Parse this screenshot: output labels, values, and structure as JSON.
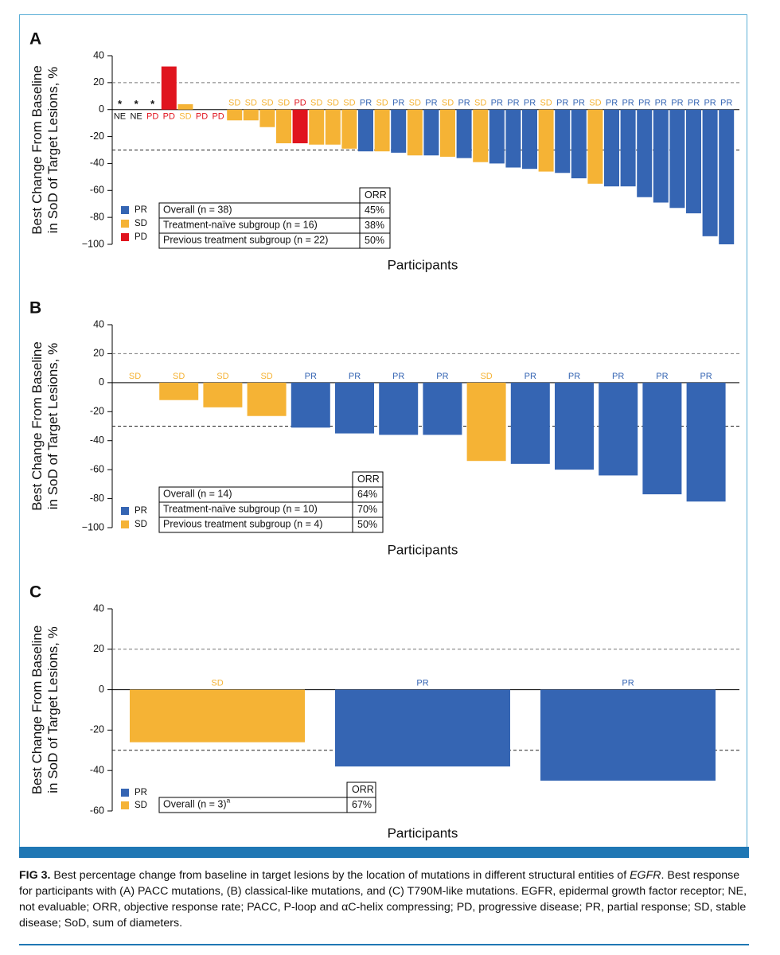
{
  "colors": {
    "PR": "#3565b3",
    "SD": "#f5b335",
    "PD": "#e0141e",
    "NE": "#111111",
    "frame": "#5aaed6",
    "band": "#1f77b4"
  },
  "chart_data": [
    {
      "type": "bar",
      "panel": "A",
      "ylabel_line1": "Best Change From Baseline",
      "ylabel_line2": "in SoD of Target Lesions, %",
      "xlabel": "Participants",
      "ylim": [
        -100,
        40
      ],
      "yticks": [
        40,
        20,
        0,
        -20,
        -40,
        -60,
        -80,
        -100
      ],
      "ytick_labels": [
        "40",
        "20",
        "0",
        "-20",
        "-40",
        "-60",
        "-80",
        "−100"
      ],
      "reference_lines": [
        20,
        -30
      ],
      "responses": [
        "NE",
        "NE",
        "PD",
        "PD",
        "SD",
        "PD",
        "PD",
        "SD",
        "SD",
        "SD",
        "SD",
        "PD",
        "SD",
        "SD",
        "SD",
        "PR",
        "SD",
        "PR",
        "SD",
        "PR",
        "SD",
        "PR",
        "SD",
        "PR",
        "PR",
        "PR",
        "SD",
        "PR",
        "PR",
        "SD",
        "PR",
        "PR",
        "PR",
        "PR",
        "PR",
        "PR",
        "PR",
        "PR"
      ],
      "values": [
        0,
        0,
        0,
        32,
        4,
        0,
        0,
        -8,
        -8,
        -13,
        -25,
        -25,
        -26,
        -26,
        -29,
        -31,
        -31,
        -32,
        -34,
        -34,
        -35,
        -36,
        -39,
        -40,
        -43,
        -44,
        -46,
        -47,
        -51,
        -55,
        -57,
        -57,
        -65,
        -69,
        -73,
        -77,
        -94,
        -100
      ],
      "not_evaluable_mark": "*",
      "not_evaluable_columns": [
        0,
        1,
        2
      ],
      "legend": [
        "PR",
        "SD",
        "PD"
      ],
      "orr_table": {
        "header": "ORR",
        "rows": [
          {
            "label": "Overall (n = 38)",
            "value": "45%"
          },
          {
            "label": "Treatment-naïve subgroup (n = 16)",
            "value": "38%"
          },
          {
            "label": "Previous treatment subgroup (n = 22)",
            "value": "50%"
          }
        ]
      }
    },
    {
      "type": "bar",
      "panel": "B",
      "ylabel_line1": "Best Change From Baseline",
      "ylabel_line2": "in SoD of Target Lesions, %",
      "xlabel": "Participants",
      "ylim": [
        -100,
        40
      ],
      "yticks": [
        40,
        20,
        0,
        -20,
        -40,
        -60,
        -80,
        -100
      ],
      "ytick_labels": [
        "40",
        "20",
        "0",
        "-20",
        "-40",
        "-60",
        "-80",
        "−100"
      ],
      "reference_lines": [
        20,
        -30
      ],
      "responses": [
        "SD",
        "SD",
        "SD",
        "SD",
        "PR",
        "PR",
        "PR",
        "PR",
        "SD",
        "PR",
        "PR",
        "PR",
        "PR",
        "PR"
      ],
      "values": [
        0,
        -12,
        -17,
        -23,
        -31,
        -35,
        -36,
        -36,
        -54,
        -56,
        -60,
        -64,
        -77,
        -82
      ],
      "legend": [
        "PR",
        "SD"
      ],
      "orr_table": {
        "header": "ORR",
        "rows": [
          {
            "label": "Overall (n = 14)",
            "value": "64%"
          },
          {
            "label": "Treatment-naïve subgroup (n = 10)",
            "value": "70%"
          },
          {
            "label": "Previous treatment subgroup (n = 4)",
            "value": "50%"
          }
        ]
      }
    },
    {
      "type": "bar",
      "panel": "C",
      "ylabel_line1": "Best Change From Baseline",
      "ylabel_line2": "in SoD of Target Lesions, %",
      "xlabel": "Participants",
      "ylim": [
        -60,
        40
      ],
      "yticks": [
        40,
        20,
        0,
        -20,
        -40,
        -60
      ],
      "ytick_labels": [
        "40",
        "20",
        "0",
        "-20",
        "-40",
        "-60"
      ],
      "reference_lines": [
        20,
        -30
      ],
      "responses": [
        "SD",
        "PR",
        "PR"
      ],
      "values": [
        -26,
        -38,
        -45
      ],
      "legend": [
        "PR",
        "SD"
      ],
      "orr_table": {
        "header": "ORR",
        "rows": [
          {
            "label": "Overall (n = 3)",
            "label_superscript": "a",
            "value": "67%"
          }
        ]
      }
    }
  ],
  "caption": {
    "figure_label": "FIG 3.",
    "text_before_italic": " Best percentage change from baseline in target lesions by the location of mutations in different structural entities of ",
    "italic": "EGFR",
    "text_after_italic": ". Best response for participants with (A) PACC mutations, (B) classical-like mutations, and (C) T790M-like mutations. EGFR, epidermal growth factor receptor; NE, not evaluable; ORR, objective response rate; PACC, P-loop and αC-helix compressing; PD, progressive disease; PR, partial response; SD, stable disease; SoD, sum of diameters."
  }
}
